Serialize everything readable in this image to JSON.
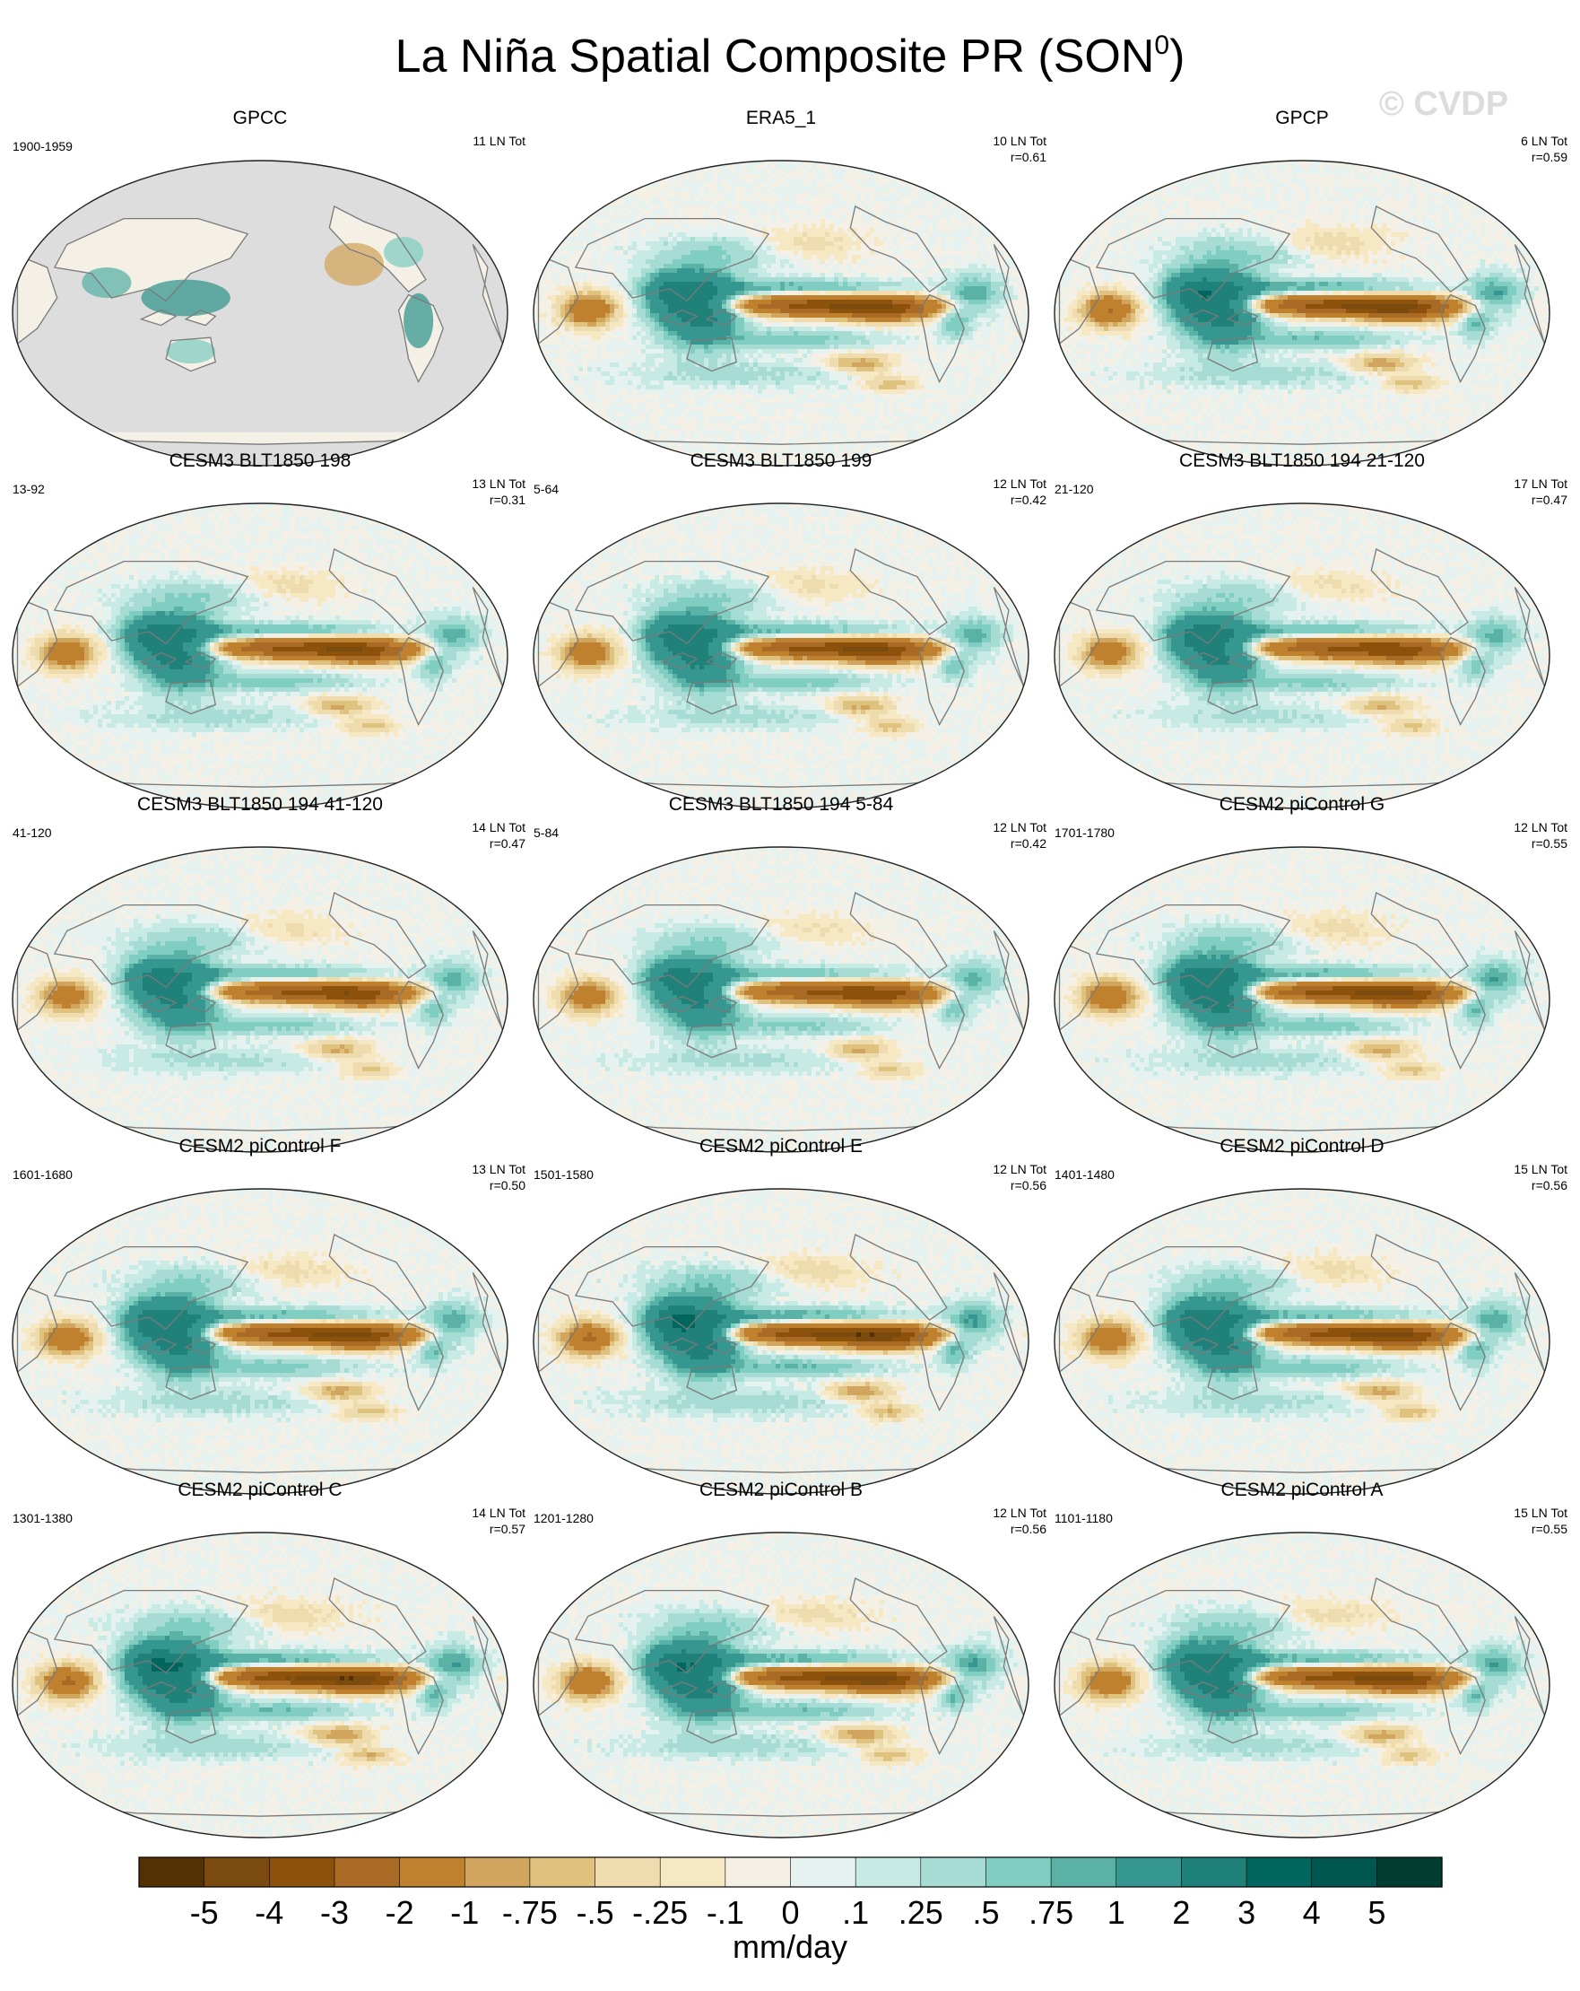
{
  "figure": {
    "title_main": "La Niña Spatial Composite PR (SON",
    "title_sup": "0",
    "title_close": ")",
    "watermark": "© CVDP"
  },
  "palette": {
    "colors": [
      "#543005",
      "#7b4a0e",
      "#8c510a",
      "#a86a24",
      "#bf812d",
      "#d2a55e",
      "#dfc27d",
      "#eedbae",
      "#f6e8c3",
      "#f5f0e6",
      "#e6f2ef",
      "#c7eae5",
      "#a7dcd4",
      "#80cdc1",
      "#5ab1a5",
      "#35978f",
      "#1f8179",
      "#01665e",
      "#00574f",
      "#003c30"
    ],
    "land_grey": "#dddddd",
    "coast": "#7a7a7a",
    "outline": "#222222"
  },
  "panels": [
    {
      "title": "GPCC",
      "left": "1900-1959",
      "right1": "11 LN Tot",
      "right2": "",
      "amp": 0.35,
      "seed": 1,
      "masked": true
    },
    {
      "title": "ERA5_1",
      "left": "",
      "right1": "10 LN Tot",
      "right2": "r=0.61",
      "amp": 0.85,
      "seed": 2,
      "masked": false
    },
    {
      "title": "GPCP",
      "left": "",
      "right1": "6 LN Tot",
      "right2": "r=0.59",
      "amp": 0.9,
      "seed": 3,
      "masked": false
    },
    {
      "title": "CESM3 BLT1850 198",
      "left": "13-92",
      "right1": "13 LN Tot",
      "right2": "r=0.31",
      "amp": 0.8,
      "seed": 4,
      "masked": false
    },
    {
      "title": "CESM3 BLT1850 199",
      "left": "5-64",
      "right1": "12 LN Tot",
      "right2": "r=0.42",
      "amp": 0.8,
      "seed": 5,
      "masked": false
    },
    {
      "title": "CESM3 BLT1850 194 21-120",
      "left": "21-120",
      "right1": "17 LN Tot",
      "right2": "r=0.47",
      "amp": 0.75,
      "seed": 6,
      "masked": false
    },
    {
      "title": "CESM3 BLT1850 194 41-120",
      "left": "41-120",
      "right1": "14 LN Tot",
      "right2": "r=0.47",
      "amp": 0.75,
      "seed": 7,
      "masked": false
    },
    {
      "title": "CESM3 BLT1850 194 5-84",
      "left": "5-84",
      "right1": "12 LN Tot",
      "right2": "r=0.42",
      "amp": 0.75,
      "seed": 8,
      "masked": false
    },
    {
      "title": "CESM2 piControl G",
      "left": "1701-1780",
      "right1": "12 LN Tot",
      "right2": "r=0.55",
      "amp": 0.85,
      "seed": 9,
      "masked": false
    },
    {
      "title": "CESM2 piControl F",
      "left": "1601-1680",
      "right1": "13 LN Tot",
      "right2": "r=0.50",
      "amp": 0.85,
      "seed": 10,
      "masked": false
    },
    {
      "title": "CESM2 piControl E",
      "left": "1501-1580",
      "right1": "12 LN Tot",
      "right2": "r=0.56",
      "amp": 0.95,
      "seed": 11,
      "masked": false
    },
    {
      "title": "CESM2 piControl D",
      "left": "1401-1480",
      "right1": "15 LN Tot",
      "right2": "r=0.56",
      "amp": 0.85,
      "seed": 12,
      "masked": false
    },
    {
      "title": "CESM2 piControl C",
      "left": "1301-1380",
      "right1": "14 LN Tot",
      "right2": "r=0.57",
      "amp": 0.95,
      "seed": 13,
      "masked": false
    },
    {
      "title": "CESM2 piControl B",
      "left": "1201-1280",
      "right1": "12 LN Tot",
      "right2": "r=0.56",
      "amp": 0.9,
      "seed": 14,
      "masked": false
    },
    {
      "title": "CESM2 piControl A",
      "left": "1101-1180",
      "right1": "15 LN Tot",
      "right2": "r=0.55",
      "amp": 0.85,
      "seed": 15,
      "masked": false
    }
  ],
  "colorbar": {
    "ticks": [
      "-5",
      "-4",
      "-3",
      "-2",
      "-1",
      "-.75",
      "-.5",
      "-.25",
      "-.1",
      "0",
      ".1",
      ".25",
      ".5",
      ".75",
      "1",
      "2",
      "3",
      "4",
      "5"
    ],
    "label": "mm/day"
  }
}
